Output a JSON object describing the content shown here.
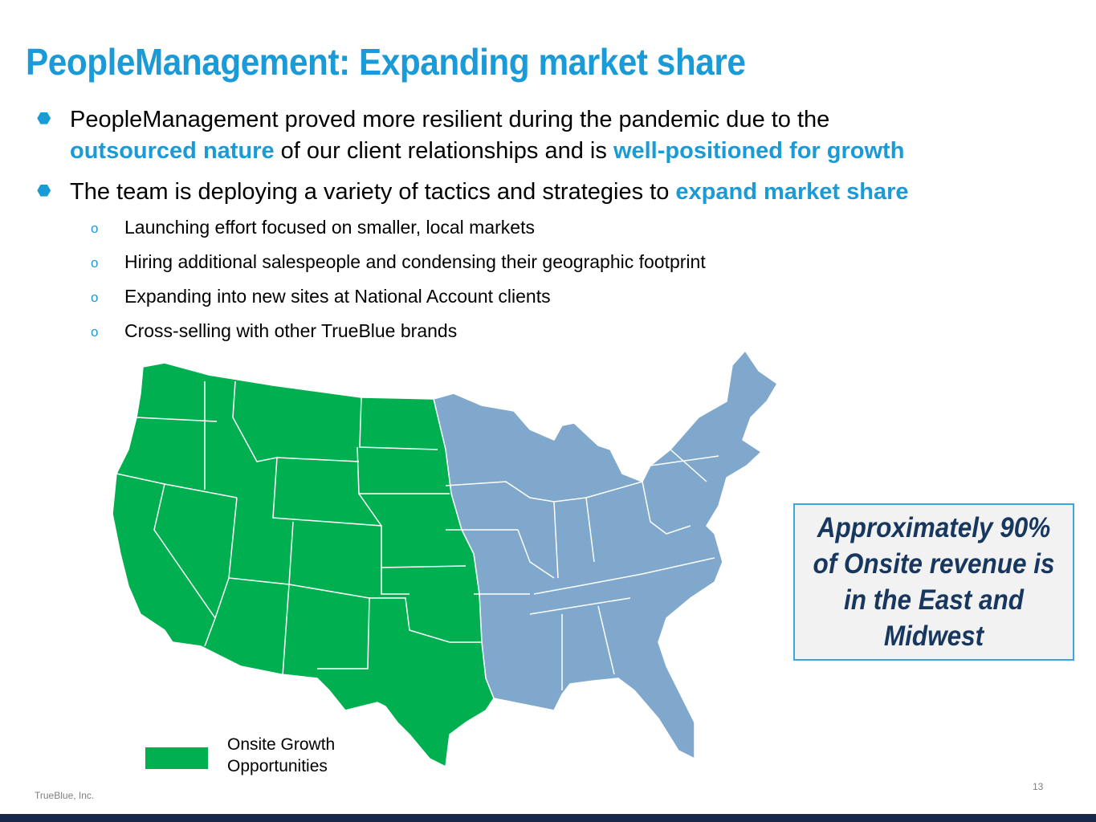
{
  "title": "PeopleManagement: Expanding market share",
  "bullets": [
    {
      "part1": "PeopleManagement proved more resilient during the pandemic due to the",
      "highlight1": "outsourced nature",
      "part2": " of our client relationships and is ",
      "highlight2": "well-positioned for growth"
    },
    {
      "part1": "The team is deploying a variety of tactics and strategies to ",
      "highlight1": "expand market share"
    }
  ],
  "sub_bullets": [
    "Launching effort focused on smaller, local markets",
    "Hiring additional salespeople and condensing their geographic footprint",
    "Expanding into new sites at National Account clients",
    "Cross-selling with other TrueBlue brands"
  ],
  "callout": "Approximately 90% of Onsite revenue is in the East and Midwest",
  "legend": {
    "label": "Onsite Growth Opportunities",
    "color": "#00b050"
  },
  "colors": {
    "accent": "#1a9ad6",
    "growth": "#00b050",
    "east": "#7fa8cc",
    "navy": "#17375e"
  },
  "page_number": "13",
  "footer": "TrueBlue, Inc."
}
